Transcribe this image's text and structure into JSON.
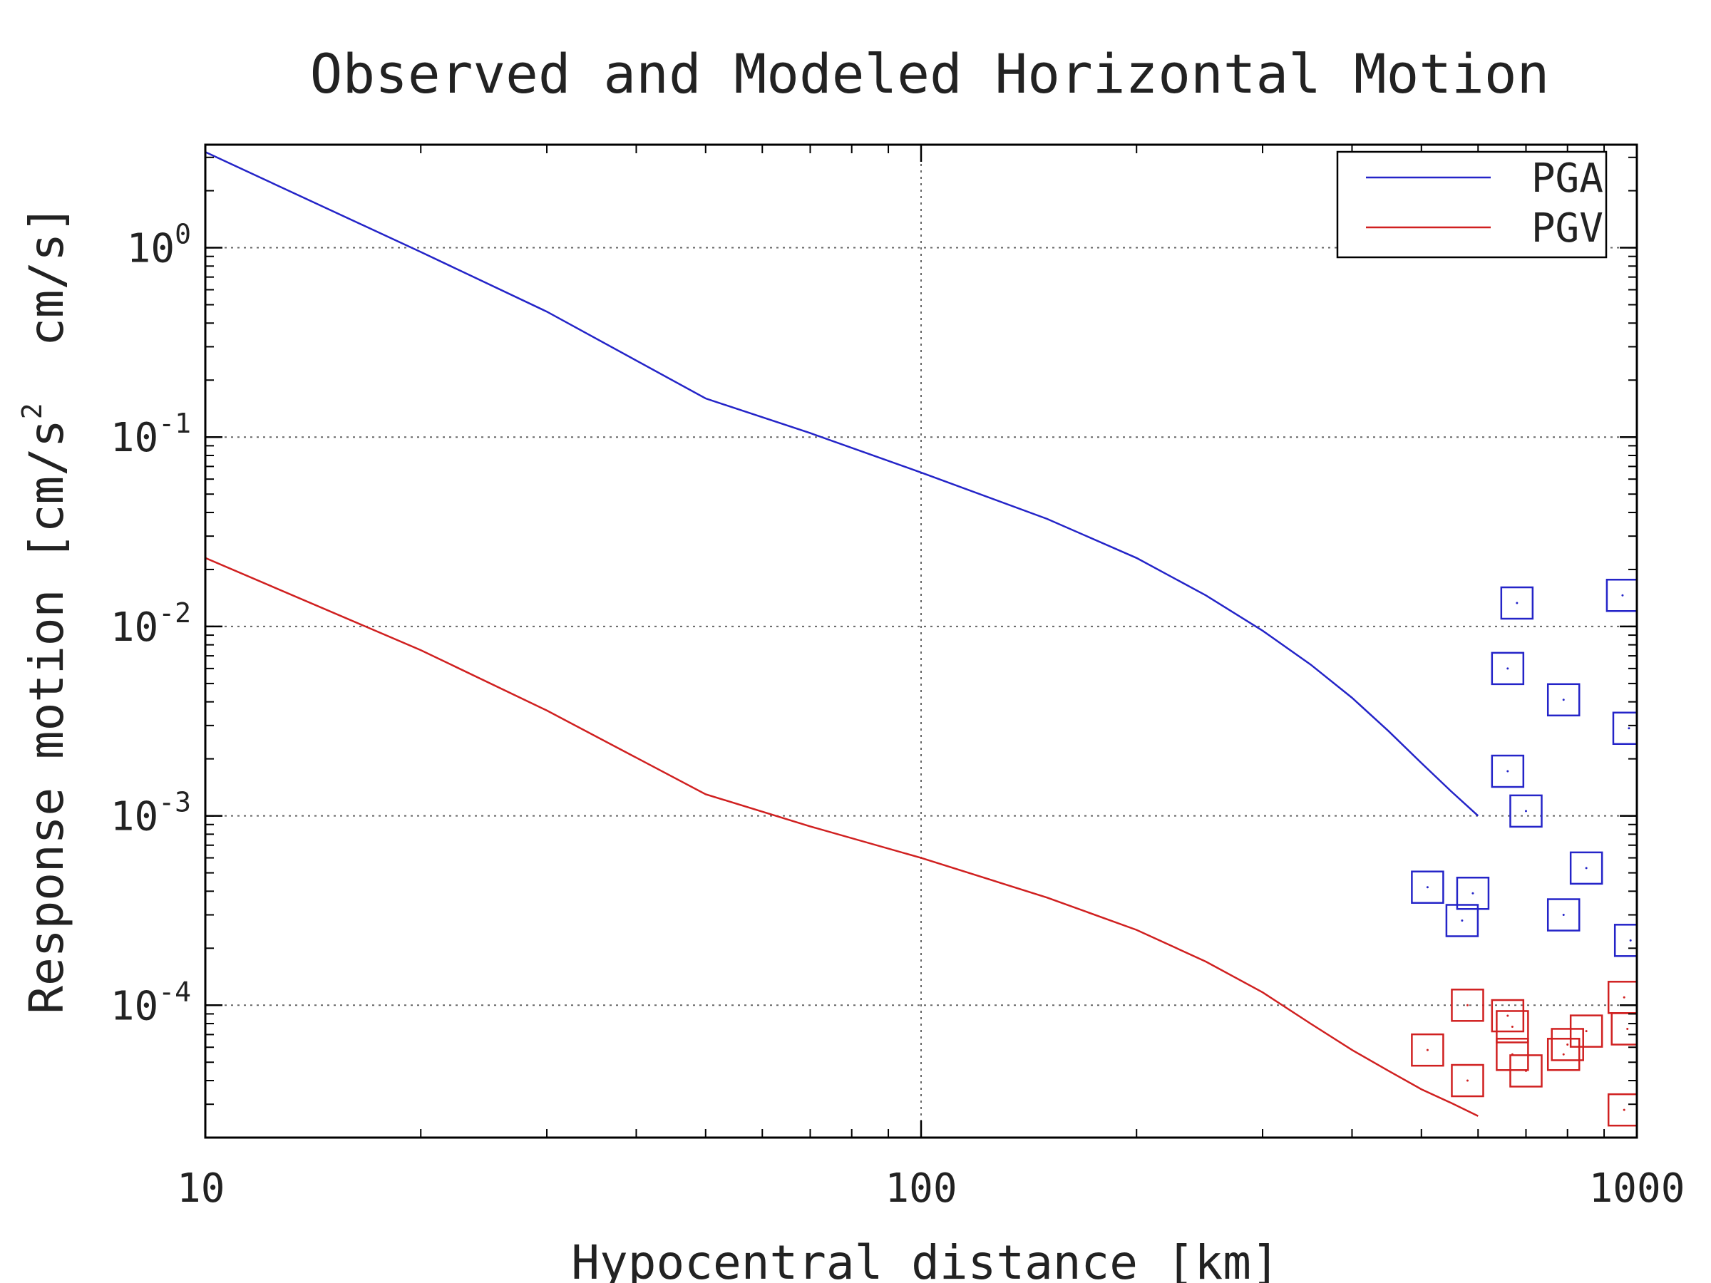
{
  "chart_data": {
    "type": "scatter",
    "title": "Observed and Modeled Horizontal Motion",
    "xlabel": "Hypocentral distance [km]",
    "ylabel": {
      "prefix": "Response motion [cm/s",
      "superscript": "2",
      "suffix": "  cm/s]"
    },
    "x_scale": "log",
    "y_scale": "log",
    "xlim": [
      10,
      1000
    ],
    "ylim": [
      2e-05,
      3.5
    ],
    "x_ticks": [
      {
        "value": 10,
        "label": "10"
      },
      {
        "value": 100,
        "label": "100"
      },
      {
        "value": 1000,
        "label": "1000"
      }
    ],
    "y_ticks": [
      {
        "value": 1,
        "base": "10",
        "exp": "0"
      },
      {
        "value": 0.1,
        "base": "10",
        "exp": "-1"
      },
      {
        "value": 0.01,
        "base": "10",
        "exp": "-2"
      },
      {
        "value": 0.001,
        "base": "10",
        "exp": "-3"
      },
      {
        "value": 0.0001,
        "base": "10",
        "exp": "-4"
      }
    ],
    "grid": true,
    "legend_position": "top-right",
    "series": [
      {
        "name": "PGA",
        "type": "line",
        "color": "#2424c8",
        "x": [
          10,
          20,
          30,
          50,
          70,
          100,
          150,
          200,
          250,
          300,
          350,
          400,
          450,
          500,
          550,
          600
        ],
        "y": [
          3.2,
          0.95,
          0.46,
          0.16,
          0.105,
          0.065,
          0.037,
          0.023,
          0.0146,
          0.0095,
          0.0063,
          0.0042,
          0.0028,
          0.0019,
          0.00135,
          0.001
        ]
      },
      {
        "name": "PGV",
        "type": "line",
        "color": "#d02020",
        "x": [
          10,
          20,
          30,
          50,
          70,
          100,
          150,
          200,
          250,
          300,
          350,
          400,
          450,
          500,
          550,
          600
        ],
        "y": [
          0.023,
          0.0075,
          0.0036,
          0.0013,
          0.00088,
          0.0006,
          0.00037,
          0.00025,
          0.00017,
          0.000117,
          8e-05,
          5.8e-05,
          4.5e-05,
          3.6e-05,
          3.05e-05,
          2.6e-05
        ]
      },
      {
        "type": "scatter",
        "marker": "square",
        "color": "#2424c8",
        "x": [
          680,
          660,
          660,
          700,
          790,
          955,
          975,
          510,
          590,
          570,
          850,
          790,
          980
        ],
        "y": [
          0.0133,
          0.006,
          0.00172,
          0.00106,
          0.0041,
          0.0146,
          0.0029,
          0.00042,
          0.00039,
          0.00028,
          0.00053,
          0.0003,
          0.00022
        ]
      },
      {
        "type": "scatter",
        "marker": "square",
        "color": "#d02020",
        "x": [
          510,
          580,
          660,
          670,
          670,
          580,
          700,
          790,
          800,
          850,
          960,
          970,
          960
        ],
        "y": [
          5.8e-05,
          0.0001,
          8.8e-05,
          7.7e-05,
          5.5e-05,
          4e-05,
          4.5e-05,
          5.5e-05,
          6.2e-05,
          7.3e-05,
          0.00011,
          7.5e-05,
          2.8e-05
        ]
      }
    ]
  }
}
